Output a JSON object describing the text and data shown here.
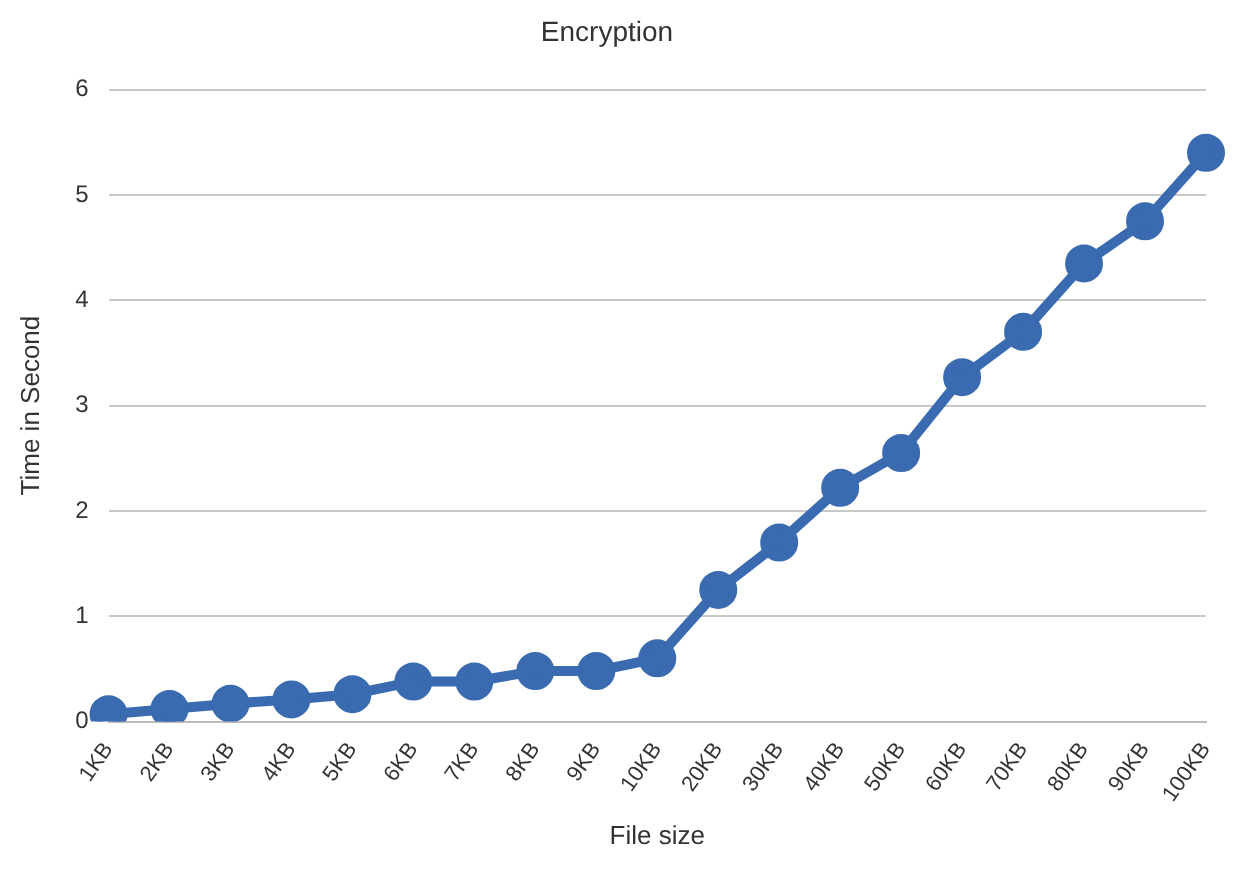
{
  "chart_data": {
    "type": "line",
    "title": "Encryption",
    "xlabel": "File size",
    "ylabel": "Time in Second",
    "categories": [
      "1KB",
      "2KB",
      "3KB",
      "4KB",
      "5KB",
      "6KB",
      "7KB",
      "8KB",
      "9KB",
      "10KB",
      "20KB",
      "30KB",
      "40KB",
      "50KB",
      "60KB",
      "70KB",
      "80KB",
      "90KB",
      "100KB"
    ],
    "series": [
      {
        "color": "#3a6bb0",
        "values": [
          0.07,
          0.12,
          0.17,
          0.21,
          0.26,
          0.38,
          0.38,
          0.48,
          0.48,
          0.6,
          1.25,
          1.7,
          2.22,
          2.55,
          3.27,
          3.7,
          4.35,
          4.75,
          5.4
        ]
      }
    ],
    "ylim": [
      0,
      6
    ],
    "yticks": [
      0,
      1,
      2,
      3,
      4,
      5,
      6
    ],
    "grid": "y",
    "legend": false,
    "marker": "circle",
    "line_style": "solid"
  }
}
